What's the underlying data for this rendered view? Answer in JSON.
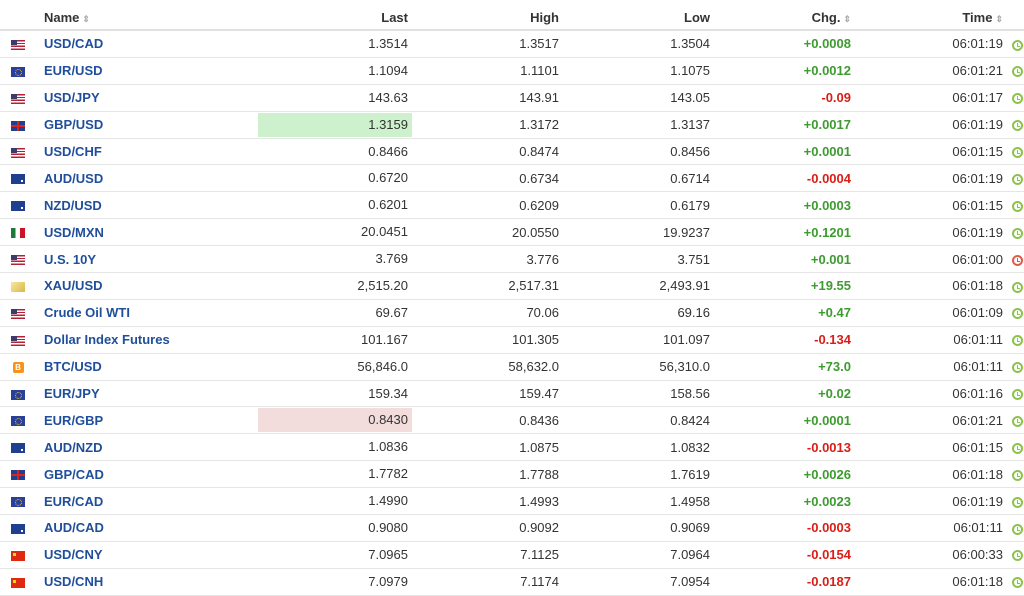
{
  "columns": {
    "name": "Name",
    "last": "Last",
    "high": "High",
    "low": "Low",
    "chg": "Chg.",
    "time": "Time"
  },
  "colors": {
    "positive": "#3d9b2f",
    "negative": "#d91e18",
    "link": "#1f4e9b",
    "flash_up": "#ccf1cc",
    "flash_down": "#f2dcdc"
  },
  "rows": [
    {
      "flag": "us-flag",
      "name": "USD/CAD",
      "last": "1.3514",
      "high": "1.3517",
      "low": "1.3504",
      "chg": "+0.0008",
      "time": "06:01:19",
      "dir": "pos",
      "status": "green"
    },
    {
      "flag": "eu-flag",
      "name": "EUR/USD",
      "last": "1.1094",
      "high": "1.1101",
      "low": "1.1075",
      "chg": "+0.0012",
      "time": "06:01:21",
      "dir": "pos",
      "status": "green"
    },
    {
      "flag": "us-flag",
      "name": "USD/JPY",
      "last": "143.63",
      "high": "143.91",
      "low": "143.05",
      "chg": "-0.09",
      "time": "06:01:17",
      "dir": "neg",
      "status": "green"
    },
    {
      "flag": "gb-flag",
      "name": "GBP/USD",
      "last": "1.3159",
      "high": "1.3172",
      "low": "1.3137",
      "chg": "+0.0017",
      "time": "06:01:19",
      "dir": "pos",
      "status": "green",
      "flash": "up"
    },
    {
      "flag": "us-flag",
      "name": "USD/CHF",
      "last": "0.8466",
      "high": "0.8474",
      "low": "0.8456",
      "chg": "+0.0001",
      "time": "06:01:15",
      "dir": "pos",
      "status": "green"
    },
    {
      "flag": "au-flag",
      "name": "AUD/USD",
      "last": "0.6720",
      "high": "0.6734",
      "low": "0.6714",
      "chg": "-0.0004",
      "time": "06:01:19",
      "dir": "neg",
      "status": "green"
    },
    {
      "flag": "au-flag",
      "name": "NZD/USD",
      "last": "0.6201",
      "high": "0.6209",
      "low": "0.6179",
      "chg": "+0.0003",
      "time": "06:01:15",
      "dir": "pos",
      "status": "green"
    },
    {
      "flag": "mx-flag",
      "name": "USD/MXN",
      "last": "20.0451",
      "high": "20.0550",
      "low": "19.9237",
      "chg": "+0.1201",
      "time": "06:01:19",
      "dir": "pos",
      "status": "green"
    },
    {
      "flag": "us-flag",
      "name": "U.S. 10Y",
      "last": "3.769",
      "high": "3.776",
      "low": "3.751",
      "chg": "+0.001",
      "time": "06:01:00",
      "dir": "pos",
      "status": "red"
    },
    {
      "flag": "gold-icon",
      "name": "XAU/USD",
      "last": "2,515.20",
      "high": "2,517.31",
      "low": "2,493.91",
      "chg": "+19.55",
      "time": "06:01:18",
      "dir": "pos",
      "status": "green"
    },
    {
      "flag": "us-flag",
      "name": "Crude Oil WTI",
      "last": "69.67",
      "high": "70.06",
      "low": "69.16",
      "chg": "+0.47",
      "time": "06:01:09",
      "dir": "pos",
      "status": "green"
    },
    {
      "flag": "us-flag",
      "name": "Dollar Index Futures",
      "last": "101.167",
      "high": "101.305",
      "low": "101.097",
      "chg": "-0.134",
      "time": "06:01:11",
      "dir": "neg",
      "status": "green"
    },
    {
      "flag": "btc-icon",
      "name": "BTC/USD",
      "last": "56,846.0",
      "high": "58,632.0",
      "low": "56,310.0",
      "chg": "+73.0",
      "time": "06:01:11",
      "dir": "pos",
      "status": "green"
    },
    {
      "flag": "eu-flag",
      "name": "EUR/JPY",
      "last": "159.34",
      "high": "159.47",
      "low": "158.56",
      "chg": "+0.02",
      "time": "06:01:16",
      "dir": "pos",
      "status": "green"
    },
    {
      "flag": "eu-flag",
      "name": "EUR/GBP",
      "last": "0.8430",
      "high": "0.8436",
      "low": "0.8424",
      "chg": "+0.0001",
      "time": "06:01:21",
      "dir": "pos",
      "status": "green",
      "flash": "down"
    },
    {
      "flag": "au-flag",
      "name": "AUD/NZD",
      "last": "1.0836",
      "high": "1.0875",
      "low": "1.0832",
      "chg": "-0.0013",
      "time": "06:01:15",
      "dir": "neg",
      "status": "green"
    },
    {
      "flag": "gb-flag",
      "name": "GBP/CAD",
      "last": "1.7782",
      "high": "1.7788",
      "low": "1.7619",
      "chg": "+0.0026",
      "time": "06:01:18",
      "dir": "pos",
      "status": "green"
    },
    {
      "flag": "eu-flag",
      "name": "EUR/CAD",
      "last": "1.4990",
      "high": "1.4993",
      "low": "1.4958",
      "chg": "+0.0023",
      "time": "06:01:19",
      "dir": "pos",
      "status": "green"
    },
    {
      "flag": "au-flag",
      "name": "AUD/CAD",
      "last": "0.9080",
      "high": "0.9092",
      "low": "0.9069",
      "chg": "-0.0003",
      "time": "06:01:11",
      "dir": "neg",
      "status": "green"
    },
    {
      "flag": "cn-flag",
      "name": "USD/CNY",
      "last": "7.0965",
      "high": "7.1125",
      "low": "7.0964",
      "chg": "-0.0154",
      "time": "06:00:33",
      "dir": "neg",
      "status": "green"
    },
    {
      "flag": "cn-flag",
      "name": "USD/CNH",
      "last": "7.0979",
      "high": "7.1174",
      "low": "7.0954",
      "chg": "-0.0187",
      "time": "06:01:18",
      "dir": "neg",
      "status": "green"
    }
  ]
}
